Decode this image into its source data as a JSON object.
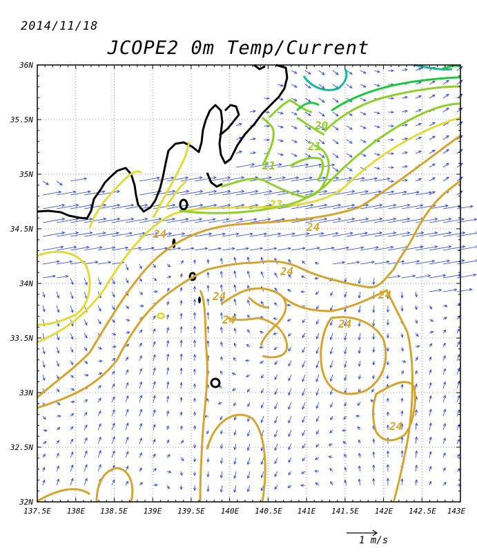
{
  "date": "2014/11/18",
  "title": "JCOPE2    0m Temp/Current",
  "lat_labels": [
    "36N",
    "35.5N",
    "35N",
    "34.5N",
    "34N",
    "33.5N",
    "33N",
    "32.5N",
    "32N"
  ],
  "lon_labels": [
    "137.5E",
    "138E",
    "138.5E",
    "139E",
    "139.5E",
    "140E",
    "140.5E",
    "141E",
    "141.5E",
    "142E",
    "142.5E",
    "143E"
  ],
  "contour_labels": [
    {
      "text": "24",
      "color": "#d4a42e"
    },
    {
      "text": "24",
      "color": "#d4a42e"
    },
    {
      "text": "24",
      "color": "#d4a42e"
    },
    {
      "text": "24",
      "color": "#d4a42e"
    },
    {
      "text": "24",
      "color": "#d4a42e"
    },
    {
      "text": "24",
      "color": "#d4a42e"
    },
    {
      "text": "24",
      "color": "#d4a42e"
    },
    {
      "text": "21",
      "color": "#8fcf2a"
    },
    {
      "text": "21",
      "color": "#8fcf2a"
    },
    {
      "text": "20",
      "color": "#8fcf2a"
    },
    {
      "text": "23",
      "color": "#c8d42a"
    }
  ],
  "scale": {
    "label": "1 m/s"
  },
  "colors": {
    "vector": "#1f3fe0",
    "coast": "#000000",
    "c24": "#d4a42e",
    "c23": "#e0da3a",
    "c21": "#8fcf2a",
    "c19": "#1cc83c",
    "c17": "#16b89c"
  }
}
